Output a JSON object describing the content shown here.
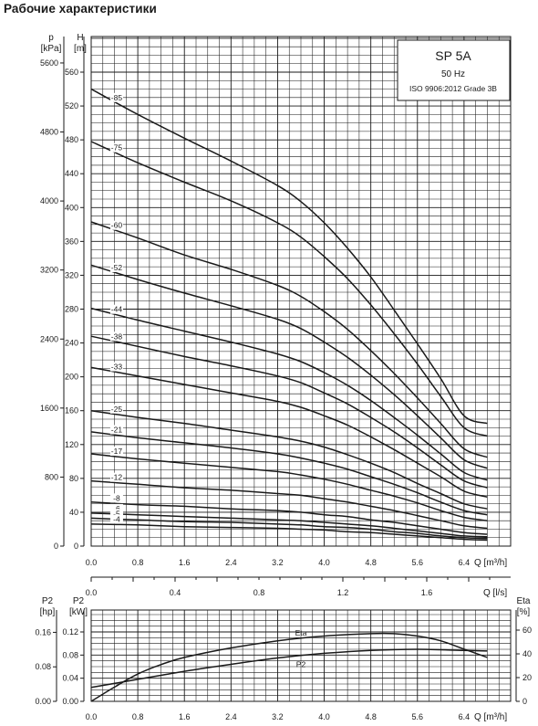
{
  "page_title": "Рабочие характеристики",
  "legend": {
    "model": "SP 5A",
    "frequency": "50 Hz",
    "standard": "ISO 9906:2012 Grade 3B"
  },
  "chart_data": [
    {
      "type": "line",
      "title": "",
      "x_axis": {
        "label": "Q [m³/h]",
        "range": [
          0,
          7.2
        ],
        "ticks": [
          "0.0",
          "0.8",
          "1.6",
          "2.4",
          "3.2",
          "4.0",
          "4.8",
          "5.6",
          "6.4"
        ]
      },
      "x_axis_secondary": {
        "label": "Q [l/s]",
        "range": [
          0,
          2.0
        ],
        "ticks": [
          "0.0",
          "0.4",
          "0.8",
          "1.2",
          "1.6"
        ]
      },
      "y_axis": {
        "label_top": "H",
        "label_unit": "[m]",
        "range": [
          0,
          560
        ],
        "ticks": [
          "0",
          "40",
          "80",
          "120",
          "160",
          "200",
          "240",
          "280",
          "320",
          "360",
          "400",
          "440",
          "480",
          "520",
          "560"
        ]
      },
      "y_axis_secondary": {
        "label_top": "p",
        "label_unit": "[kPa]",
        "ticks": [
          "0",
          "800",
          "1600",
          "2400",
          "3200",
          "4000",
          "4800",
          "5600"
        ]
      },
      "grid": true,
      "legend_position": "top-right",
      "series": [
        {
          "name": "-85",
          "x": [
            0,
            0.8,
            1.6,
            2.4,
            3.2,
            3.6,
            4.0,
            4.4,
            4.8,
            5.2,
            5.6,
            6.0,
            6.4,
            6.8
          ],
          "y": [
            540,
            510,
            482,
            455,
            426,
            407,
            382,
            352,
            318,
            279,
            239,
            198,
            154,
            145
          ]
        },
        {
          "name": "-75",
          "x": [
            0,
            0.8,
            1.6,
            2.4,
            3.2,
            3.6,
            4.0,
            4.4,
            4.8,
            5.2,
            5.6,
            6.0,
            6.4,
            6.8
          ],
          "y": [
            478,
            453,
            430,
            408,
            382,
            365,
            342,
            316,
            285,
            251,
            215,
            177,
            140,
            130
          ]
        },
        {
          "name": "-60",
          "x": [
            0,
            0.8,
            1.6,
            2.4,
            3.2,
            3.6,
            4.0,
            4.4,
            4.8,
            5.2,
            5.6,
            6.0,
            6.4,
            6.8
          ],
          "y": [
            383,
            364,
            344,
            327,
            308,
            295,
            277,
            256,
            231,
            204,
            175,
            145,
            115,
            105
          ]
        },
        {
          "name": "-52",
          "x": [
            0,
            0.8,
            1.6,
            2.4,
            3.2,
            3.6,
            4.0,
            4.4,
            4.8,
            5.2,
            5.6,
            6.0,
            6.4,
            6.8
          ],
          "y": [
            332,
            315,
            299,
            284,
            268,
            257,
            241,
            223,
            202,
            179,
            154,
            128,
            102,
            92
          ]
        },
        {
          "name": "-44",
          "x": [
            0,
            0.8,
            1.6,
            2.4,
            3.2,
            3.6,
            4.0,
            4.4,
            4.8,
            5.2,
            5.6,
            6.0,
            6.4,
            6.8
          ],
          "y": [
            281,
            267,
            254,
            241,
            227,
            218,
            205,
            190,
            172,
            152,
            131,
            109,
            87,
            78
          ]
        },
        {
          "name": "-38",
          "x": [
            0,
            0.8,
            1.6,
            2.4,
            3.2,
            3.6,
            4.0,
            4.4,
            4.8,
            5.2,
            5.6,
            6.0,
            6.4,
            6.8
          ],
          "y": [
            248,
            236,
            224,
            213,
            201,
            193,
            181,
            168,
            152,
            135,
            116,
            96,
            77,
            69
          ]
        },
        {
          "name": "-33",
          "x": [
            0,
            0.8,
            1.6,
            2.4,
            3.2,
            3.6,
            4.0,
            4.4,
            4.8,
            5.2,
            5.6,
            6.0,
            6.4,
            6.8
          ],
          "y": [
            211,
            201,
            191,
            181,
            171,
            164,
            154,
            143,
            129,
            114,
            98,
            82,
            65,
            58
          ]
        },
        {
          "name": "-25",
          "x": [
            0,
            0.8,
            1.6,
            2.4,
            3.2,
            3.6,
            4.0,
            4.4,
            4.8,
            5.2,
            5.6,
            6.0,
            6.4,
            6.8
          ],
          "y": [
            160,
            152,
            145,
            137,
            129,
            124,
            117,
            108,
            98,
            87,
            74,
            62,
            50,
            44
          ]
        },
        {
          "name": "-21",
          "x": [
            0,
            0.8,
            1.6,
            2.4,
            3.2,
            3.6,
            4.0,
            4.4,
            4.8,
            5.2,
            5.6,
            6.0,
            6.4,
            6.8
          ],
          "y": [
            135,
            128,
            122,
            116,
            109,
            104,
            98,
            91,
            82,
            73,
            63,
            52,
            42,
            37
          ]
        },
        {
          "name": "-17",
          "x": [
            0,
            0.8,
            1.6,
            2.4,
            3.2,
            3.6,
            4.0,
            4.4,
            4.8,
            5.2,
            5.6,
            6.0,
            6.4,
            6.8
          ],
          "y": [
            109,
            103,
            98,
            93,
            88,
            84,
            79,
            73,
            66,
            59,
            51,
            42,
            34,
            30
          ]
        },
        {
          "name": "-12",
          "x": [
            0,
            0.8,
            1.6,
            2.4,
            3.2,
            3.6,
            4.0,
            4.4,
            4.8,
            5.2,
            5.6,
            6.0,
            6.4,
            6.8
          ],
          "y": [
            77,
            73,
            69,
            66,
            62,
            60,
            56,
            52,
            47,
            42,
            36,
            30,
            24,
            21
          ]
        },
        {
          "name": "-8",
          "x": [
            0,
            0.8,
            1.6,
            2.4,
            3.2,
            3.6,
            4.0,
            4.4,
            4.8,
            5.2,
            5.6,
            6.0,
            6.4,
            6.8
          ],
          "y": [
            52,
            49,
            47,
            44,
            42,
            40,
            37,
            35,
            31,
            28,
            24,
            20,
            16,
            14
          ]
        },
        {
          "name": "-6",
          "x": [
            0,
            0.8,
            1.6,
            2.4,
            3.2,
            3.6,
            4.0,
            4.4,
            4.8,
            5.2,
            5.6,
            6.0,
            6.4,
            6.8
          ],
          "y": [
            39,
            37,
            35,
            33,
            31,
            30,
            28,
            26,
            24,
            21,
            18,
            15,
            12,
            11
          ]
        },
        {
          "name": "-5",
          "x": [
            0,
            0.8,
            1.6,
            2.4,
            3.2,
            3.6,
            4.0,
            4.4,
            4.8,
            5.2,
            5.6,
            6.0,
            6.4,
            6.8
          ],
          "y": [
            33,
            31,
            29,
            28,
            26,
            25,
            23,
            22,
            20,
            17,
            15,
            12,
            10,
            9
          ]
        },
        {
          "name": "-4",
          "x": [
            0,
            0.8,
            1.6,
            2.4,
            3.2,
            3.6,
            4.0,
            4.4,
            4.8,
            5.2,
            5.6,
            6.0,
            6.4,
            6.8
          ],
          "y": [
            26,
            25,
            23,
            22,
            21,
            20,
            19,
            17,
            16,
            14,
            12,
            10,
            8,
            7
          ]
        }
      ]
    },
    {
      "type": "line",
      "title": "",
      "x_axis": {
        "label": "Q [m³/h]",
        "range": [
          0,
          7.2
        ],
        "ticks": [
          "0.0",
          "0.8",
          "1.6",
          "2.4",
          "3.2",
          "4.0",
          "4.8",
          "5.6",
          "6.4"
        ]
      },
      "y_axis": {
        "label_top": "P2",
        "label_unit": "[kW]",
        "range": [
          0,
          0.14
        ],
        "ticks": [
          "0.00",
          "0.04",
          "0.08",
          "0.12"
        ]
      },
      "y_axis_hp": {
        "label_top": "P2",
        "label_unit": "[hp]",
        "ticks": [
          "0.00",
          "0.08",
          "0.16"
        ]
      },
      "y_axis_right": {
        "label_top": "Eta",
        "label_unit": "[%]",
        "ticks": [
          "0",
          "20",
          "40",
          "60"
        ]
      },
      "grid": true,
      "series": [
        {
          "name": "Eta",
          "x": [
            0,
            0.4,
            0.8,
            1.2,
            1.6,
            2.4,
            3.2,
            4.0,
            4.8,
            5.2,
            5.6,
            6.0,
            6.4,
            6.8
          ],
          "y": [
            0,
            12,
            23,
            31,
            37,
            45,
            51,
            55,
            57,
            57,
            55,
            51,
            44,
            37
          ]
        },
        {
          "name": "P2",
          "x": [
            0,
            0.8,
            1.6,
            2.4,
            3.2,
            4.0,
            4.8,
            5.6,
            6.4,
            6.8
          ],
          "y": [
            0.024,
            0.038,
            0.052,
            0.064,
            0.075,
            0.083,
            0.088,
            0.09,
            0.088,
            0.087
          ]
        }
      ]
    }
  ]
}
